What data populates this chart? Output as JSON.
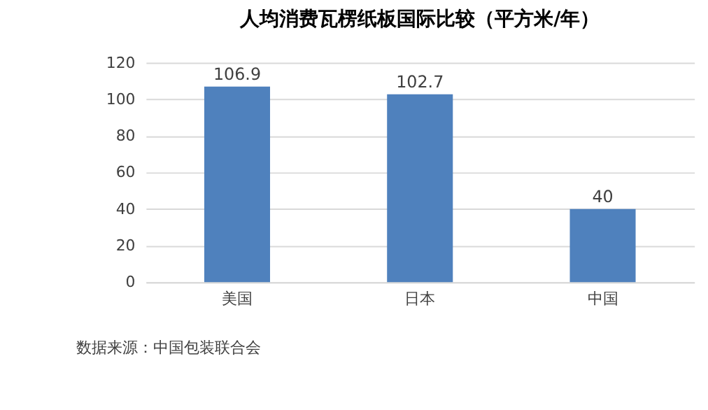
{
  "chart_data": {
    "type": "bar",
    "title": "人均消费瓦楞纸板国际比较（平方米/年）",
    "categories": [
      "美国",
      "日本",
      "中国"
    ],
    "values": [
      106.9,
      102.7,
      40
    ],
    "color": "#4f81bd",
    "ylim": [
      0,
      120
    ],
    "yticks": [
      0,
      20,
      40,
      60,
      80,
      100,
      120
    ],
    "grid": "y",
    "data_labels": true,
    "annotations": [
      "数据来源：中国包装联合会"
    ]
  }
}
